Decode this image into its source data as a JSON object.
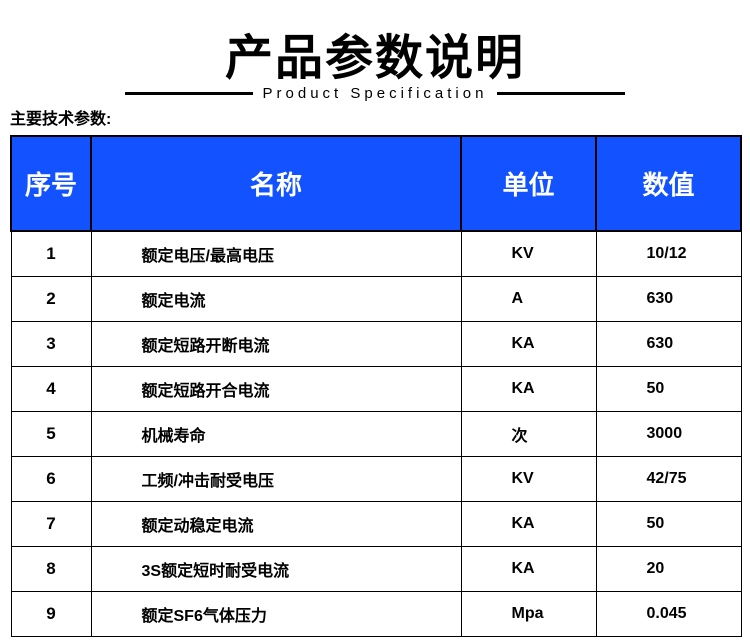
{
  "title": "产品参数说明",
  "subtitle": "Product Specification",
  "techLabel": "主要技术参数:",
  "headerColor": "#1253ff",
  "headerTextColor": "#ffffff",
  "borderColor": "#000000",
  "columns": {
    "seq": "序号",
    "name": "名称",
    "unit": "单位",
    "value": "数值"
  },
  "rows": [
    {
      "seq": "1",
      "name": "额定电压/最高电压",
      "unit": "KV",
      "value": "10/12"
    },
    {
      "seq": "2",
      "name": "额定电流",
      "unit": "A",
      "value": "630"
    },
    {
      "seq": "3",
      "name": "额定短路开断电流",
      "unit": "KA",
      "value": "630"
    },
    {
      "seq": "4",
      "name": "额定短路开合电流",
      "unit": "KA",
      "value": "50"
    },
    {
      "seq": "5",
      "name": "机械寿命",
      "unit": "次",
      "value": "3000"
    },
    {
      "seq": "6",
      "name": "工频/冲击耐受电压",
      "unit": "KV",
      "value": "42/75"
    },
    {
      "seq": "7",
      "name": "额定动稳定电流",
      "unit": "KA",
      "value": "50"
    },
    {
      "seq": "8",
      "name": "3S额定短时耐受电流",
      "unit": "KA",
      "value": "20"
    },
    {
      "seq": "9",
      "name": "额定SF6气体压力",
      "unit": "Mpa",
      "value": "0.045"
    }
  ]
}
